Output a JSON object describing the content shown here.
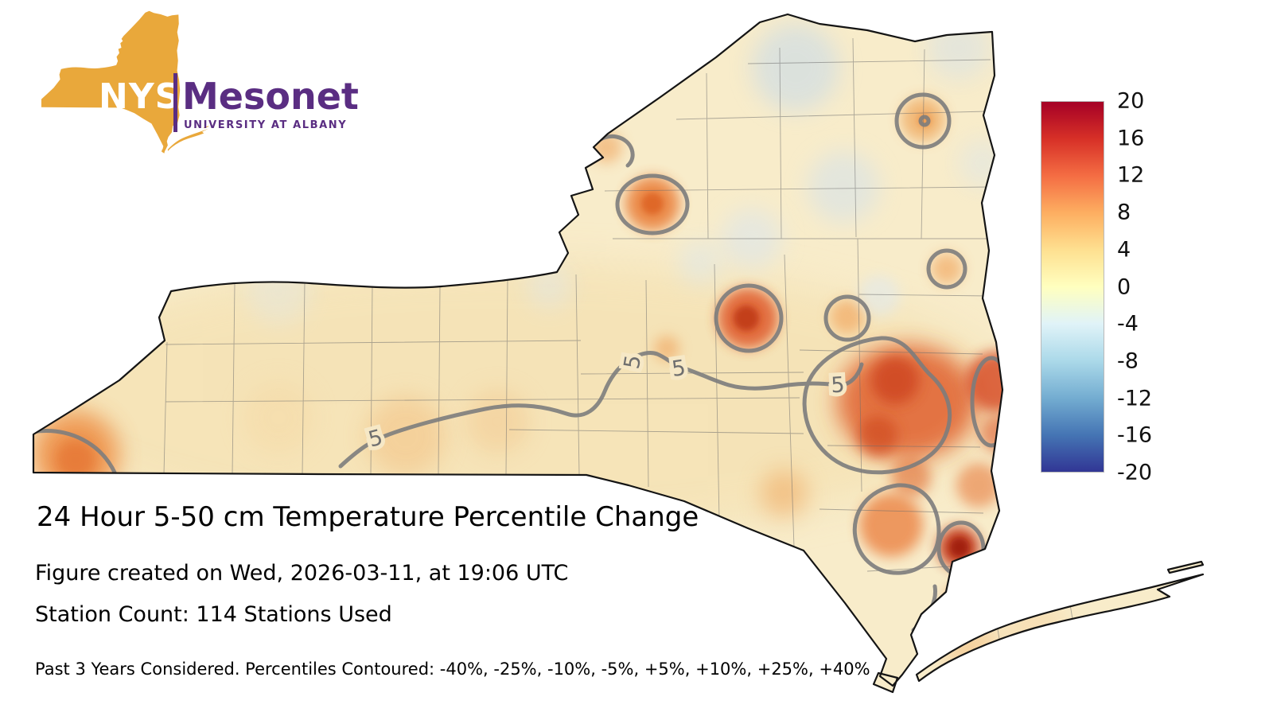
{
  "logo": {
    "acronym": "NYS",
    "name": "Mesonet",
    "subtitle": "UNIVERSITY AT ALBANY",
    "state_color": "#E9A83B",
    "purple": "#5A2D82"
  },
  "caption": {
    "title": "24 Hour 5-50 cm Temperature Percentile Change",
    "created": "Figure created on Wed, 2026-03-11, at 19:06 UTC",
    "stations": "Station Count: 114 Stations Used",
    "footnote": "Past 3 Years Considered. Percentiles Contoured: -40%, -25%, -10%, -5%, +5%, +10%, +25%, +40%"
  },
  "chart_data": {
    "type": "heatmap",
    "title": "24 Hour 5-50 cm Temperature Percentile Change",
    "region": "New York State with county boundaries and Long Island",
    "units": "percentile change",
    "created_utc": "Wed, 2026-03-11, at 19:06 UTC",
    "stations_used": 114,
    "years_considered": 3,
    "colorbar": {
      "min": -20,
      "max": 20,
      "ticks": [
        20,
        16,
        12,
        8,
        4,
        0,
        -4,
        -8,
        -12,
        -16,
        -20
      ],
      "colormap": "red-yellow-blue diverging (red = positive, blue = negative)",
      "colors_top_to_bottom": [
        "#a50026",
        "#d73027",
        "#f46d43",
        "#fdae61",
        "#fee090",
        "#ffffbf",
        "#e0f3f8",
        "#abd9e9",
        "#74add1",
        "#4575b4",
        "#313695"
      ]
    },
    "contours": {
      "levels_percent": [
        -40,
        -25,
        -10,
        -5,
        5,
        10,
        25,
        40
      ],
      "visible_label": "5",
      "line_color": "#7d7d7d"
    },
    "field_summary": [
      {
        "area": "most of the state",
        "approx_value": "+2 to +6"
      },
      {
        "area": "Mohawk Valley hotspot (central-east)",
        "approx_value": "+12"
      },
      {
        "area": "eastern Catskills / Hudson Valley blob",
        "approx_value": "+10 to +16"
      },
      {
        "area": "lower Hudson / NYC-edge hotspot",
        "approx_value": "+18"
      },
      {
        "area": "small hotspot near Tug Hill (ringed)",
        "approx_value": "+10"
      },
      {
        "area": "northern Adirondack ringed spot",
        "approx_value": "+8"
      },
      {
        "area": "southwest corner (Chautauqua)",
        "approx_value": "+8"
      },
      {
        "area": "scattered northern patches",
        "approx_value": "-2 to -4"
      }
    ]
  }
}
